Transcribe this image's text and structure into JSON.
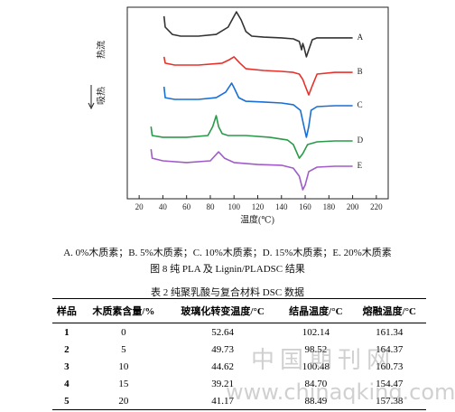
{
  "chart_data": {
    "type": "line",
    "xlabel": "温度(℃)",
    "ylabel_top": "热流",
    "ylabel_bottom": "吸热",
    "xlim": [
      10,
      230
    ],
    "xticks": [
      20,
      40,
      60,
      80,
      100,
      120,
      140,
      160,
      180,
      200,
      220
    ],
    "ylim": [
      0,
      100
    ],
    "series": [
      {
        "name": "A",
        "color": "#333333",
        "x": [
          41,
          42,
          48,
          55,
          70,
          85,
          95,
          100,
          102,
          106,
          110,
          115,
          125,
          140,
          150,
          155,
          157,
          158,
          159,
          161,
          163,
          166,
          170,
          185,
          200
        ],
        "values": [
          95.3,
          89.6,
          85.8,
          84.9,
          84.9,
          85.8,
          89.6,
          95.3,
          97.6,
          93.4,
          87.3,
          84.9,
          84.4,
          84.0,
          83.5,
          82.1,
          77.8,
          81.1,
          79.2,
          74.1,
          77.8,
          83.0,
          84.0,
          84.0,
          84.0
        ]
      },
      {
        "name": "B",
        "color": "#e8302a",
        "x": [
          41,
          42,
          50,
          70,
          90,
          96,
          100,
          105,
          110,
          125,
          140,
          150,
          155,
          158,
          160,
          163,
          166,
          170,
          185,
          200
        ],
        "values": [
          74.1,
          70.8,
          69.8,
          69.8,
          70.8,
          72.6,
          74.1,
          70.8,
          67.9,
          67.0,
          66.5,
          66.0,
          65.1,
          62.3,
          59.0,
          54.2,
          59.0,
          65.1,
          66.0,
          66.0
        ]
      },
      {
        "name": "C",
        "color": "#1a6fd6",
        "x": [
          41,
          42,
          50,
          70,
          85,
          93,
          98,
          100,
          104,
          110,
          125,
          140,
          150,
          156,
          159,
          161,
          163,
          165,
          170,
          185,
          200
        ],
        "values": [
          58.5,
          52.8,
          51.9,
          51.9,
          52.8,
          55.7,
          60.4,
          58.0,
          52.8,
          50.9,
          50.5,
          50.0,
          49.1,
          46.2,
          37.7,
          32.1,
          37.7,
          46.2,
          48.1,
          48.6,
          48.6
        ]
      },
      {
        "name": "D",
        "color": "#2a9a4a",
        "x": [
          30,
          31,
          40,
          60,
          78,
          82,
          85,
          87,
          90,
          95,
          110,
          130,
          145,
          150,
          155,
          158,
          162,
          170,
          185,
          200
        ],
        "values": [
          37.7,
          33.0,
          32.1,
          32.1,
          33.0,
          37.7,
          43.4,
          37.7,
          34.0,
          33.0,
          33.0,
          32.1,
          30.7,
          28.3,
          21.2,
          23.6,
          28.3,
          29.7,
          30.2,
          30.2
        ]
      },
      {
        "name": "E",
        "color": "#a05cc8",
        "x": [
          30,
          31,
          40,
          60,
          80,
          87,
          92,
          100,
          120,
          140,
          150,
          155,
          158,
          160,
          163,
          170,
          185,
          200
        ],
        "values": [
          25.9,
          21.2,
          19.8,
          18.9,
          19.8,
          24.5,
          21.2,
          18.9,
          17.9,
          17.5,
          16.0,
          11.8,
          4.7,
          7.1,
          14.2,
          16.5,
          17.0,
          17.0
        ]
      }
    ]
  },
  "figure": {
    "legend_note": "A. 0%木质素；B. 5%木质素；C. 10%木质素；D. 15%木质素；E. 20%木质素",
    "caption": "图 8  纯 PLA 及 Lignin/PLADSC 结果"
  },
  "table": {
    "title": "表 2  纯聚乳酸与复合材料 DSC 数据",
    "header": [
      "样品",
      "木质素含量/%",
      "玻璃化转变温度/°C",
      "结晶温度/°C",
      "熔融温度/°C"
    ],
    "rows": [
      [
        "1",
        "0",
        "52.64",
        "102.14",
        "161.34"
      ],
      [
        "2",
        "5",
        "49.73",
        "98.52",
        "164.37"
      ],
      [
        "3",
        "10",
        "44.62",
        "100.48",
        "160.73"
      ],
      [
        "4",
        "15",
        "39.21",
        "84.70",
        "154.47"
      ],
      [
        "5",
        "20",
        "41.17",
        "88.49",
        "157.38"
      ]
    ]
  },
  "watermark": {
    "name": "中国期刊网",
    "url": "www.chinaqking.com"
  }
}
